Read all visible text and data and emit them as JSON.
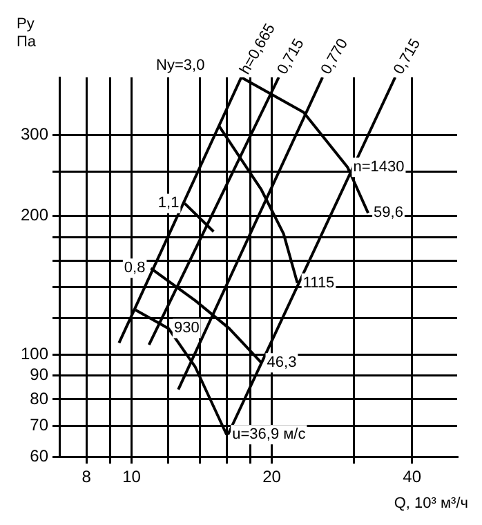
{
  "chart_data": {
    "type": "line",
    "xlabel": "Q, 10³ м³/ч",
    "ylabel": "Ру\nПа",
    "log": "xy",
    "grid": true,
    "legend": false,
    "marker": "none",
    "xlim": [
      7,
      50
    ],
    "ylim": [
      60,
      400
    ],
    "xticks": [
      8,
      {
        "value": 9,
        "label": null
      },
      10,
      {
        "value": 12,
        "label": null
      },
      {
        "value": 14,
        "label": null
      },
      {
        "value": 16,
        "label": null
      },
      {
        "value": 18,
        "label": null
      },
      20,
      {
        "value": 30,
        "label": null
      },
      40
    ],
    "yticks": [
      60,
      70,
      80,
      90,
      100,
      {
        "value": 120,
        "label": null
      },
      {
        "value": 140,
        "label": null
      },
      {
        "value": 160,
        "label": null
      },
      {
        "value": 180,
        "label": null
      },
      200,
      {
        "value": 250,
        "label": null
      },
      300
    ],
    "series": [
      {
        "color": "#000000",
        "x": [
          9.4,
          17.2
        ],
        "values": [
          106,
          400
        ]
      },
      {
        "color": "#000000",
        "x": [
          10.9,
          20.7
        ],
        "values": [
          105,
          400
        ]
      },
      {
        "color": "#000000",
        "x": [
          12.6,
          25.7
        ],
        "values": [
          84,
          400
        ]
      },
      {
        "color": "#000000",
        "x": [
          16.1,
          36.8
        ],
        "values": [
          67,
          400
        ]
      },
      {
        "color": "#000000",
        "x": [
          17.2,
          23.4,
          29.1,
          32.2
        ],
        "values": [
          400,
          336,
          255,
          203
        ]
      },
      {
        "color": "#000000",
        "x": [
          15.4,
          19.0,
          21.2,
          22.7
        ],
        "values": [
          314,
          228,
          183,
          143
        ]
      },
      {
        "color": "#000000",
        "x": [
          11.0,
          13.7,
          16.2,
          19.0
        ],
        "values": [
          154,
          131,
          114,
          96
        ]
      },
      {
        "color": "#000000",
        "x": [
          10.2,
          12.0,
          13.7,
          16.0
        ],
        "values": [
          125,
          114,
          94,
          67
        ]
      },
      {
        "color": "#000000",
        "x": [
          13.0,
          15.0
        ],
        "values": [
          213,
          185
        ]
      }
    ],
    "annotations": [
      "Ny=3,0",
      {
        "text": "h=0,665",
        "x": 17.2,
        "y": 400
      },
      {
        "text": "0,715",
        "x": 20.7,
        "y": 400
      },
      {
        "text": "0,770",
        "x": 25.7,
        "y": 400
      },
      {
        "text": "0,715",
        "x": 36.8,
        "y": 400
      },
      {
        "text": "1,1",
        "x": 13.0,
        "y": 213
      },
      {
        "text": "0,8",
        "x": 11.0,
        "y": 154
      },
      {
        "text": "n=1430",
        "x": 29.1,
        "y": 255
      },
      {
        "text": "59,6",
        "x": 32.2,
        "y": 203
      },
      {
        "text": "1115",
        "x": 22.7,
        "y": 143
      },
      {
        "text": "930",
        "x": 12.0,
        "y": 114
      },
      {
        "text": "46,3",
        "x": 19.0,
        "y": 96
      },
      {
        "text": "u=36,9 м/с",
        "x": 16.0,
        "y": 67
      }
    ]
  }
}
